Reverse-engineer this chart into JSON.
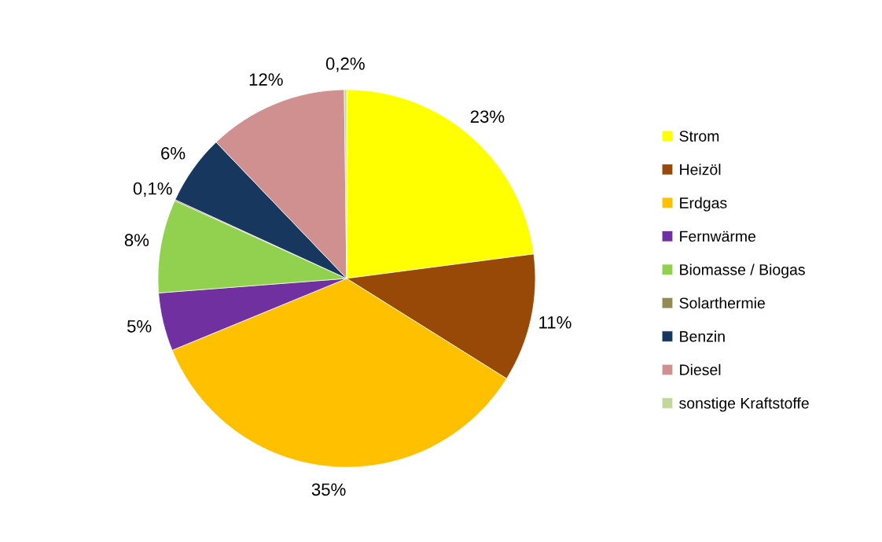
{
  "chart_data": {
    "type": "pie",
    "categories": [
      "Strom",
      "Heizöl",
      "Erdgas",
      "Fernwärme",
      "Biomasse / Biogas",
      "Solarthermie",
      "Benzin",
      "Diesel",
      "sonstige Kraftstoffe"
    ],
    "values": [
      23,
      11,
      35,
      5,
      8,
      0.1,
      6,
      12,
      0.2
    ],
    "colors": [
      "#ffff00",
      "#984807",
      "#ffc000",
      "#7030a0",
      "#92d050",
      "#948a54",
      "#17375e",
      "#d09090",
      "#c4d79b"
    ],
    "value_labels": [
      "23%",
      "11%",
      "35%",
      "5%",
      "8%",
      "0,1%",
      "6%",
      "12%",
      "0,2%"
    ],
    "legend": "right"
  }
}
